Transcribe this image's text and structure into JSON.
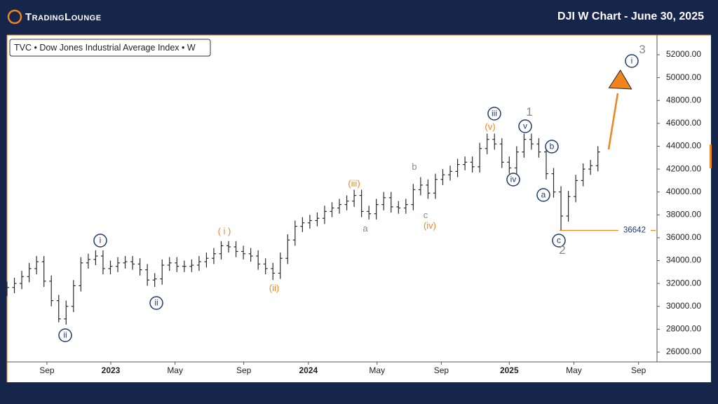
{
  "header": {
    "logo": "TradingLounge",
    "title": "DJI W Chart - June 30, 2025"
  },
  "chart_data": {
    "type": "ohlc",
    "symbol": "TVC • Dow Jones Industrial Average Index • W",
    "color": "#2b2b2b",
    "x": [
      0,
      2,
      4,
      6,
      8,
      10,
      12,
      14,
      16,
      18,
      20,
      22,
      24,
      26,
      28,
      30,
      32,
      34,
      36,
      38,
      40,
      42,
      44,
      46,
      48,
      50,
      52,
      54,
      56,
      58,
      60,
      62,
      64,
      66,
      68,
      70,
      72,
      74,
      76,
      78,
      80,
      82,
      84,
      86,
      88,
      90,
      92,
      94,
      96,
      98,
      100,
      102,
      104,
      106,
      108,
      110,
      112,
      114,
      116,
      118,
      120,
      122,
      124,
      126,
      128,
      130,
      132,
      134,
      136,
      138,
      140,
      142,
      144,
      146,
      148,
      150,
      152,
      154,
      156,
      158,
      160
    ],
    "ohlc": [
      [
        31400,
        32150,
        30900,
        31650
      ],
      [
        31650,
        32500,
        31150,
        32000
      ],
      [
        32000,
        33100,
        31500,
        32600
      ],
      [
        32600,
        33800,
        32100,
        33300
      ],
      [
        33300,
        34400,
        32800,
        33900
      ],
      [
        33900,
        34400,
        31700,
        32200
      ],
      [
        32200,
        32700,
        30000,
        30500
      ],
      [
        30500,
        31000,
        28600,
        28900
      ],
      [
        28900,
        30500,
        28400,
        30000
      ],
      [
        30000,
        32300,
        29500,
        31800
      ],
      [
        31800,
        34300,
        31300,
        33800
      ],
      [
        33800,
        34600,
        33300,
        34100
      ],
      [
        34100,
        34900,
        33600,
        34400
      ],
      [
        34400,
        34900,
        32800,
        33300
      ],
      [
        33300,
        34000,
        32800,
        33500
      ],
      [
        33500,
        34300,
        33000,
        33800
      ],
      [
        33800,
        34400,
        33300,
        33900
      ],
      [
        33900,
        34400,
        33200,
        33700
      ],
      [
        33700,
        34200,
        32700,
        33200
      ],
      [
        33200,
        33700,
        31800,
        32300
      ],
      [
        32300,
        32900,
        31700,
        32400
      ],
      [
        32400,
        34100,
        31900,
        33600
      ],
      [
        33600,
        34300,
        33100,
        33800
      ],
      [
        33800,
        34300,
        33000,
        33500
      ],
      [
        33500,
        34000,
        33000,
        33500
      ],
      [
        33500,
        34100,
        33000,
        33600
      ],
      [
        33600,
        34400,
        33100,
        33900
      ],
      [
        33900,
        34700,
        33400,
        34200
      ],
      [
        34200,
        35100,
        33700,
        34600
      ],
      [
        34600,
        35700,
        34100,
        35300
      ],
      [
        35300,
        35700,
        34700,
        35200
      ],
      [
        35200,
        35700,
        34300,
        34800
      ],
      [
        34800,
        35300,
        34100,
        34600
      ],
      [
        34600,
        35100,
        33900,
        34400
      ],
      [
        34400,
        34900,
        33200,
        33700
      ],
      [
        33700,
        34200,
        32800,
        33300
      ],
      [
        33300,
        33800,
        32300,
        32900
      ],
      [
        32900,
        34700,
        32400,
        34200
      ],
      [
        34200,
        36300,
        33700,
        35800
      ],
      [
        35800,
        37500,
        35300,
        37000
      ],
      [
        37000,
        37800,
        36500,
        37300
      ],
      [
        37300,
        38000,
        36800,
        37500
      ],
      [
        37500,
        38200,
        37000,
        37700
      ],
      [
        37700,
        38800,
        37200,
        38300
      ],
      [
        38300,
        39100,
        37800,
        38600
      ],
      [
        38600,
        39400,
        38100,
        38900
      ],
      [
        38900,
        39700,
        38400,
        39200
      ],
      [
        39200,
        40200,
        38700,
        39700
      ],
      [
        39700,
        40200,
        37800,
        38300
      ],
      [
        38300,
        38800,
        37600,
        38100
      ],
      [
        38100,
        39400,
        37600,
        38900
      ],
      [
        38900,
        40000,
        38400,
        39500
      ],
      [
        39500,
        40000,
        38200,
        38700
      ],
      [
        38700,
        39200,
        38100,
        38600
      ],
      [
        38600,
        39400,
        38100,
        38900
      ],
      [
        38900,
        40700,
        38400,
        40200
      ],
      [
        40200,
        41300,
        39700,
        40600
      ],
      [
        40600,
        41100,
        39400,
        39900
      ],
      [
        39900,
        41600,
        39400,
        41100
      ],
      [
        41100,
        42000,
        40600,
        41500
      ],
      [
        41500,
        42300,
        41000,
        41800
      ],
      [
        41800,
        42900,
        41300,
        42400
      ],
      [
        42400,
        43100,
        41900,
        42600
      ],
      [
        42600,
        43100,
        41700,
        42200
      ],
      [
        42200,
        44300,
        41700,
        43800
      ],
      [
        43800,
        45100,
        43300,
        44600
      ],
      [
        44600,
        45100,
        43700,
        44200
      ],
      [
        44200,
        44700,
        42100,
        42600
      ],
      [
        42600,
        43100,
        41600,
        42100
      ],
      [
        42100,
        44000,
        41600,
        43500
      ],
      [
        43500,
        45100,
        43000,
        44600
      ],
      [
        44600,
        45100,
        43700,
        44200
      ],
      [
        44200,
        44700,
        43000,
        43500
      ],
      [
        43500,
        44000,
        41100,
        41600
      ],
      [
        41600,
        42100,
        39500,
        40000
      ],
      [
        40000,
        40500,
        36642,
        37900
      ],
      [
        37900,
        40100,
        37400,
        39600
      ],
      [
        39600,
        41500,
        39100,
        41000
      ],
      [
        41000,
        42500,
        40500,
        42000
      ],
      [
        42000,
        42800,
        41500,
        42300
      ],
      [
        42300,
        44000,
        41800,
        43500
      ]
    ],
    "xlim": [
      0,
      176
    ],
    "xticks": [
      {
        "value": 10.8,
        "label": "Sep"
      },
      {
        "value": 28.1,
        "label": "2023"
      },
      {
        "value": 45.5,
        "label": "May"
      },
      {
        "value": 64.1,
        "label": "Sep"
      },
      {
        "value": 81.6,
        "label": "2024"
      },
      {
        "value": 100.2,
        "label": "May"
      },
      {
        "value": 117.6,
        "label": "Sep"
      },
      {
        "value": 136,
        "label": "2025"
      },
      {
        "value": 153.5,
        "label": "May"
      },
      {
        "value": 171,
        "label": "Sep"
      }
    ],
    "ylim": [
      25140,
      53720
    ],
    "yticks": [
      {
        "value": 26000,
        "label": "26000.00"
      },
      {
        "value": 28000,
        "label": "28000.00"
      },
      {
        "value": 30000,
        "label": "30000.00"
      },
      {
        "value": 32000,
        "label": "32000.00"
      },
      {
        "value": 34000,
        "label": "34000.00"
      },
      {
        "value": 36000,
        "label": "36000.00"
      },
      {
        "value": 38000,
        "label": "38000.00"
      },
      {
        "value": 40000,
        "label": "40000.00"
      },
      {
        "value": 42000,
        "label": "42000.00"
      },
      {
        "value": 44000,
        "label": "44000.00"
      },
      {
        "value": 46000,
        "label": "46000.00"
      },
      {
        "value": 48000,
        "label": "48000.00"
      },
      {
        "value": 50000,
        "label": "50000.00"
      },
      {
        "value": 52000,
        "label": "52000.00"
      }
    ],
    "level": {
      "value": 36642,
      "color": "#f0841d"
    },
    "annotations": [
      {
        "text": "ii",
        "style": "circled"
      },
      {
        "text": "i",
        "style": "circled"
      },
      {
        "text": "ii",
        "style": "circled"
      },
      {
        "text": "( i )",
        "style": "orange"
      },
      {
        "text": "(ii)",
        "style": "orange"
      },
      {
        "text": "(iii)",
        "style": "orange"
      },
      {
        "text": "a",
        "style": "gray"
      },
      {
        "text": "b",
        "style": "gray"
      },
      {
        "text": "c",
        "style": "gray"
      },
      {
        "text": "(iv)",
        "style": "orange"
      },
      {
        "text": "(v)",
        "style": "orange"
      },
      {
        "text": "iii",
        "style": "circled"
      },
      {
        "text": "1",
        "style": "gray-large"
      },
      {
        "text": "v",
        "style": "circled"
      },
      {
        "text": "iv",
        "style": "circled"
      },
      {
        "text": "b",
        "style": "circled"
      },
      {
        "text": "a",
        "style": "circled"
      },
      {
        "text": "c",
        "style": "circled"
      },
      {
        "text": "2",
        "style": "gray-large"
      },
      {
        "text": "3",
        "style": "gray-large"
      },
      {
        "text": "i",
        "style": "circled"
      }
    ]
  }
}
